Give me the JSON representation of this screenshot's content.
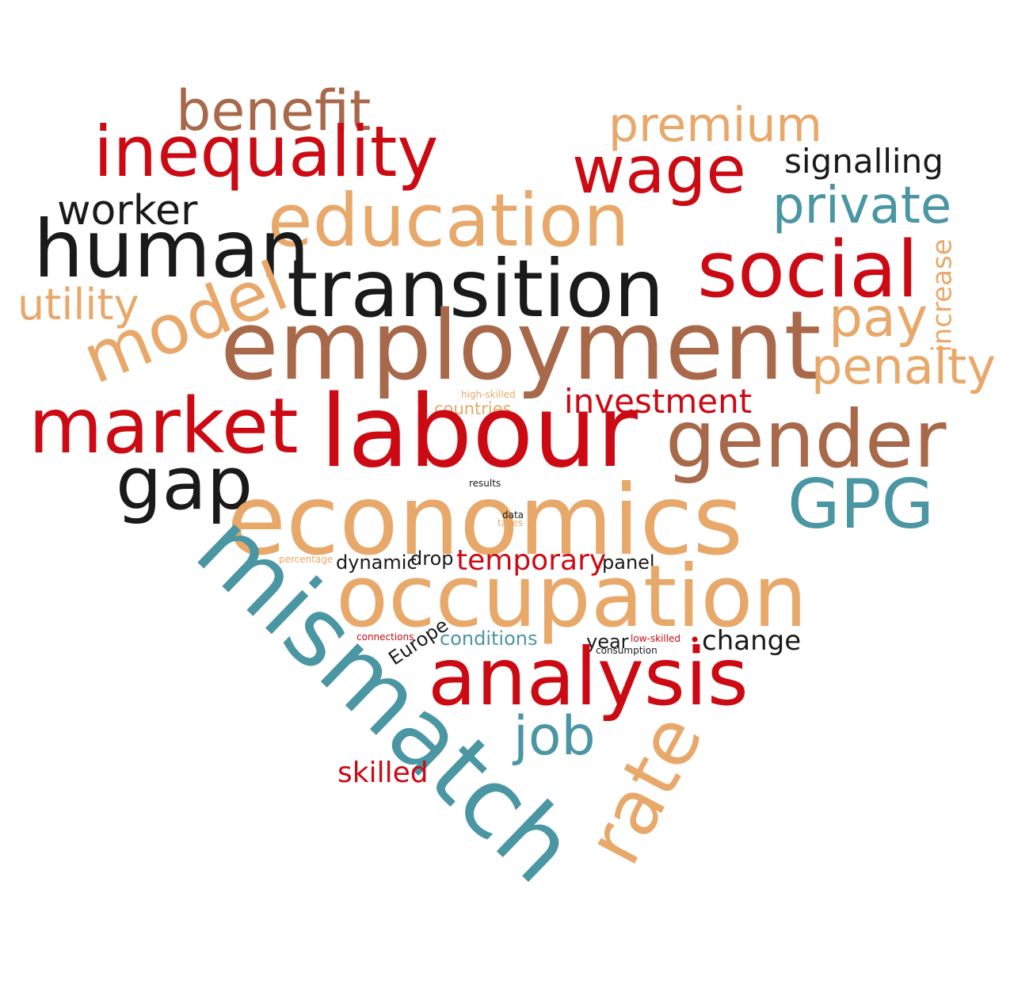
{
  "words": {
    "benefit": "benefit",
    "premium": "premium",
    "inequality": "inequality",
    "wage": "wage",
    "signalling": "signalling",
    "worker": "worker",
    "education": "education",
    "private": "private",
    "human": "human",
    "increase": "increase",
    "social": "social",
    "utility": "utility",
    "transition": "transition",
    "model": "model",
    "pay": "pay",
    "employment": "employment",
    "penalty": "penalty",
    "high_skilled": "high-skilled",
    "countries": "countries",
    "investment": "investment",
    "market": "market",
    "labour": "labour",
    "gender": "gender",
    "gap": "gap",
    "results": "results",
    "gpg": "GPG",
    "economics": "economics",
    "data": "data",
    "taxes": "taxes",
    "mismatch": "mismatch",
    "percentage": "percentage",
    "dynamic": "dynamic",
    "drop": "drop",
    "temporary": "temporary",
    "panel": "panel",
    "occupation": "occupation",
    "connections": "connections",
    "europe": "Europe",
    "conditions": "conditions",
    "year": "year",
    "low_skilled": "low-skilled",
    "consumption": "consumption",
    "change": "change",
    "analysis": "analysis",
    "job": "job",
    "rate": "rate",
    "skilled": "skilled"
  },
  "palette": {
    "red": "#cc0a14",
    "brown": "#a8694a",
    "tan": "#e8a86a",
    "black": "#1a1a1a",
    "teal": "#4a96a2"
  }
}
